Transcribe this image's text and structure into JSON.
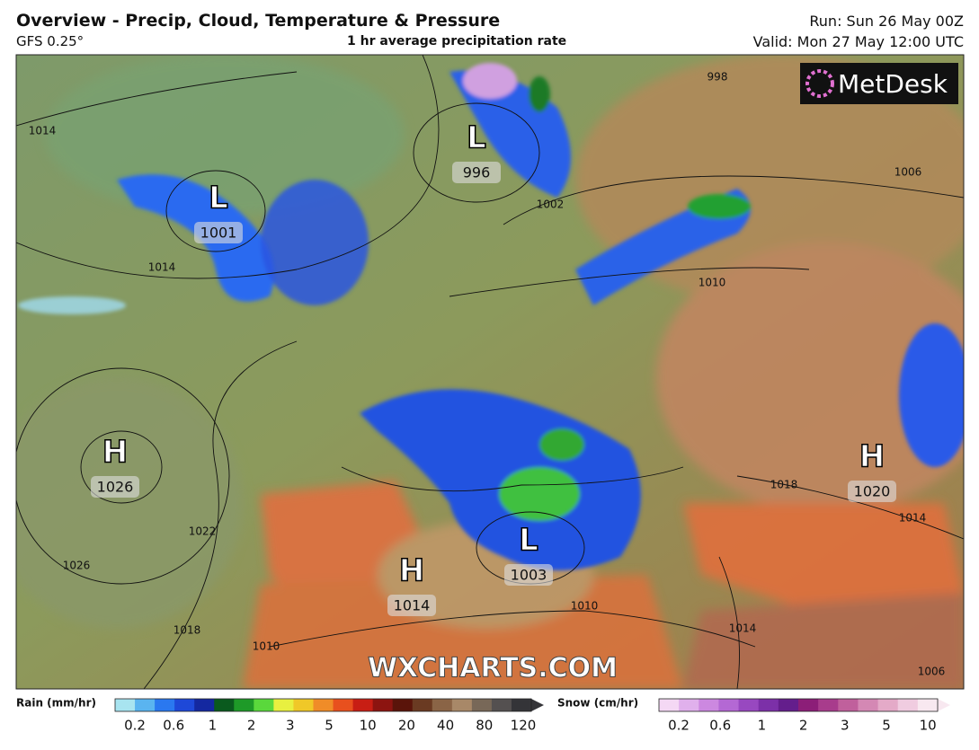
{
  "header": {
    "title": "Overview - Precip, Cloud, Temperature & Pressure",
    "model": "GFS 0.25°",
    "subtitle": "1 hr average precipitation rate",
    "run": "Run: Sun 26 May 00Z",
    "valid": "Valid: Mon 27 May 12:00 UTC"
  },
  "map": {
    "logo": "MetDesk",
    "watermark": "WXCHARTS.COM",
    "centers": [
      {
        "symbol": "L",
        "pressure": 996
      },
      {
        "symbol": "L",
        "pressure": 1001
      },
      {
        "symbol": "H",
        "pressure": 1026
      },
      {
        "symbol": "H",
        "pressure": 1014
      },
      {
        "symbol": "L",
        "pressure": 1003
      },
      {
        "symbol": "H",
        "pressure": 1020
      }
    ],
    "isobar_labels": [
      1014,
      1014,
      1002,
      1006,
      1010,
      1018,
      1014,
      1022,
      1026,
      1018,
      1010,
      1010,
      1014,
      1006,
      998
    ]
  },
  "legend": {
    "rain": {
      "label": "Rain (mm/hr)",
      "ticks": [
        0.2,
        0.6,
        1,
        2,
        3,
        5,
        10,
        20,
        40,
        80,
        120
      ],
      "colors": [
        "#a8e4f0",
        "#5ab4f0",
        "#2a78f0",
        "#1e48d8",
        "#1428a0",
        "#0a5a1e",
        "#1e9a28",
        "#5ad83c",
        "#e8f040",
        "#f0c828",
        "#f08c28",
        "#e8501e",
        "#c81e14",
        "#8c1410",
        "#5a140a",
        "#6a3a22",
        "#8a6446",
        "#a88868",
        "#786858",
        "#545050",
        "#343438"
      ]
    },
    "snow": {
      "label": "Snow (cm/hr)",
      "ticks": [
        0.2,
        0.6,
        1,
        2,
        3,
        5,
        10
      ],
      "colors": [
        "#f4d8f4",
        "#e0b0ec",
        "#cc88e0",
        "#b468d4",
        "#9848c0",
        "#7c30a8",
        "#641e8c",
        "#8c1e78",
        "#a83c8c",
        "#c0609c",
        "#d488b4",
        "#e4aac8",
        "#f0cce0",
        "#f8e8f0"
      ]
    }
  }
}
